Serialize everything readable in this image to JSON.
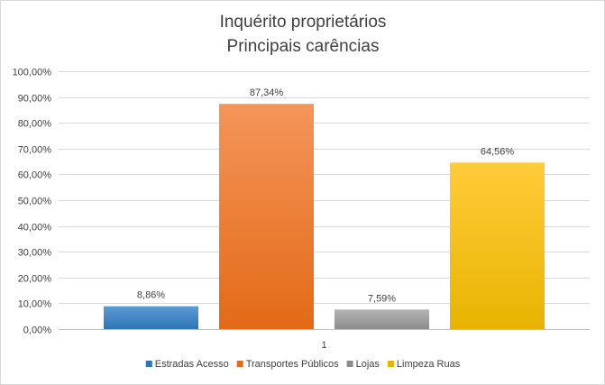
{
  "chart_data": {
    "type": "bar",
    "title_lines": [
      "Inquérito proprietários",
      "Principais carências"
    ],
    "categories": [
      "1"
    ],
    "series": [
      {
        "name": "Estradas Acesso",
        "values": [
          8.86
        ],
        "label": "8,86%",
        "color_top": "#5b9bd5",
        "color_bottom": "#2e75b6"
      },
      {
        "name": "Transportes Públicos",
        "values": [
          87.34
        ],
        "label": "87,34%",
        "color_top": "#f4955a",
        "color_bottom": "#e36a16"
      },
      {
        "name": "Lojas",
        "values": [
          7.59
        ],
        "label": "7,59%",
        "color_top": "#b4b4b4",
        "color_bottom": "#8c8c8c"
      },
      {
        "name": "Limpeza Ruas",
        "values": [
          64.56
        ],
        "label": "64,56%",
        "color_top": "#ffcc3a",
        "color_bottom": "#e8b400"
      }
    ],
    "ylim": [
      0,
      100
    ],
    "y_ticks": [
      0,
      10,
      20,
      30,
      40,
      50,
      60,
      70,
      80,
      90,
      100
    ],
    "y_tick_labels": [
      "0,00%",
      "10,00%",
      "20,00%",
      "30,00%",
      "40,00%",
      "50,00%",
      "60,00%",
      "70,00%",
      "80,00%",
      "90,00%",
      "100,00%"
    ],
    "grid": true,
    "legend_position": "bottom",
    "xlabel": "",
    "ylabel": ""
  },
  "colors": {
    "gridline": "#d9d9d9",
    "axis": "#bfbfbf",
    "text": "#404040"
  }
}
